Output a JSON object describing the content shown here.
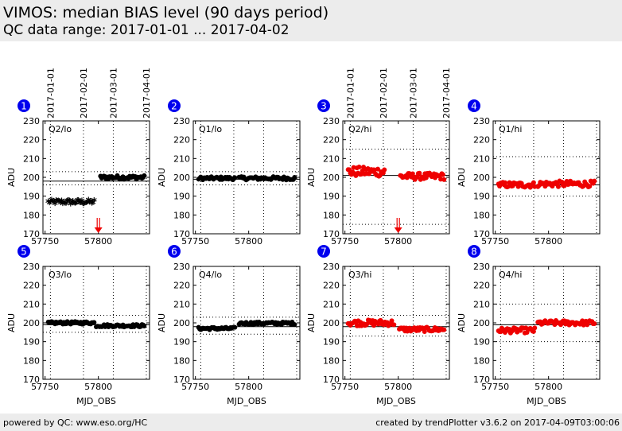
{
  "header": {
    "title": "VIMOS: median BIAS level (90 days period)",
    "subtitle": "QC data range: 2017-01-01 ... 2017-04-02"
  },
  "footer": {
    "left": "powered by QC: www.eso.org/HC",
    "right": "created by trendPlotter v3.6.2 on 2017-04-09T03:00:06"
  },
  "top_date_labels": [
    "2017-01-01",
    "2017-02-01",
    "2017-03-01",
    "2017-04-01"
  ],
  "xlabel": "MJD_OBS",
  "ylabel": "ADU",
  "colors": {
    "black_series": "#000000",
    "red_series": "#ee0000",
    "badge": "#0000ee"
  },
  "chart_data": [
    {
      "type": "scatter",
      "badge": "1",
      "label": "Q2/lo",
      "color": "black",
      "xlim": [
        57748,
        57848
      ],
      "ylim": [
        170,
        230
      ],
      "ref": 198,
      "bands": [
        203,
        196
      ],
      "outlier_arrow_x": 57800,
      "xticks": [
        57750,
        57800
      ],
      "yticks": [
        170,
        180,
        190,
        200,
        210,
        220,
        230
      ],
      "segments": [
        {
          "x0": 57753,
          "x1": 57796,
          "n": 42,
          "base": 186.5,
          "jitter": 1.3
        },
        {
          "x0": 57802,
          "x1": 57843,
          "n": 40,
          "base": 200,
          "jitter": 1.0
        }
      ]
    },
    {
      "type": "scatter",
      "badge": "2",
      "label": "Q1/lo",
      "color": "black",
      "xlim": [
        57748,
        57848
      ],
      "ylim": [
        170,
        230
      ],
      "ref": 199,
      "bands": [
        203,
        196
      ],
      "xticks": [
        57750,
        57800
      ],
      "yticks": [
        170,
        180,
        190,
        200,
        210,
        220,
        230
      ],
      "segments": [
        {
          "x0": 57753,
          "x1": 57787,
          "n": 35,
          "base": 199.5,
          "jitter": 0.8
        },
        {
          "x0": 57791,
          "x1": 57843,
          "n": 48,
          "base": 199.5,
          "jitter": 0.9
        }
      ]
    },
    {
      "type": "scatter",
      "badge": "3",
      "label": "Q2/hi",
      "color": "red",
      "xlim": [
        57748,
        57848
      ],
      "ylim": [
        170,
        230
      ],
      "ref": 201,
      "bands": [
        215,
        175
      ],
      "outlier_arrow_x": 57800,
      "xticks": [
        57750,
        57800
      ],
      "yticks": [
        170,
        180,
        190,
        200,
        210,
        220,
        230
      ],
      "segments": [
        {
          "x0": 57753,
          "x1": 57787,
          "n": 34,
          "base": 203,
          "jitter": 2.6
        },
        {
          "x0": 57802,
          "x1": 57843,
          "n": 40,
          "base": 200.5,
          "jitter": 1.8
        }
      ]
    },
    {
      "type": "scatter",
      "badge": "4",
      "label": "Q1/hi",
      "color": "red",
      "xlim": [
        57748,
        57848
      ],
      "ylim": [
        170,
        230
      ],
      "ref": 196,
      "bands": [
        211,
        190
      ],
      "xticks": [
        57750,
        57800
      ],
      "yticks": [
        170,
        180,
        190,
        200,
        210,
        220,
        230
      ],
      "segments": [
        {
          "x0": 57753,
          "x1": 57787,
          "n": 34,
          "base": 196,
          "jitter": 1.5
        },
        {
          "x0": 57790,
          "x1": 57843,
          "n": 48,
          "base": 196.5,
          "jitter": 1.6
        }
      ]
    },
    {
      "type": "scatter",
      "badge": "5",
      "label": "Q3/lo",
      "color": "black",
      "xlim": [
        57748,
        57848
      ],
      "ylim": [
        170,
        230
      ],
      "ref": 199,
      "bands": [
        204,
        195
      ],
      "xticks": [
        57750,
        57800
      ],
      "yticks": [
        170,
        180,
        190,
        200,
        210,
        220,
        230
      ],
      "segments": [
        {
          "x0": 57753,
          "x1": 57796,
          "n": 42,
          "base": 200,
          "jitter": 0.7
        },
        {
          "x0": 57798,
          "x1": 57843,
          "n": 44,
          "base": 198.5,
          "jitter": 0.7
        }
      ]
    },
    {
      "type": "scatter",
      "badge": "6",
      "label": "Q4/lo",
      "color": "black",
      "xlim": [
        57748,
        57848
      ],
      "ylim": [
        170,
        230
      ],
      "ref": 198,
      "bands": [
        203,
        194
      ],
      "xticks": [
        57750,
        57800
      ],
      "yticks": [
        170,
        180,
        190,
        200,
        210,
        220,
        230
      ],
      "segments": [
        {
          "x0": 57753,
          "x1": 57787,
          "n": 34,
          "base": 197,
          "jitter": 0.7
        },
        {
          "x0": 57791,
          "x1": 57843,
          "n": 48,
          "base": 199.8,
          "jitter": 0.7
        }
      ]
    },
    {
      "type": "scatter",
      "badge": "7",
      "label": "Q3/hi",
      "color": "red",
      "xlim": [
        57748,
        57848
      ],
      "ylim": [
        170,
        230
      ],
      "ref": 198,
      "bands": [
        204,
        193
      ],
      "xticks": [
        57750,
        57800
      ],
      "yticks": [
        170,
        180,
        190,
        200,
        210,
        220,
        230
      ],
      "segments": [
        {
          "x0": 57753,
          "x1": 57796,
          "n": 42,
          "base": 200,
          "jitter": 1.6
        },
        {
          "x0": 57801,
          "x1": 57843,
          "n": 40,
          "base": 196.5,
          "jitter": 1.2
        }
      ]
    },
    {
      "type": "scatter",
      "badge": "8",
      "label": "Q4/hi",
      "color": "red",
      "xlim": [
        57748,
        57848
      ],
      "ylim": [
        170,
        230
      ],
      "ref": 199,
      "bands": [
        210,
        190
      ],
      "xticks": [
        57750,
        57800
      ],
      "yticks": [
        170,
        180,
        190,
        200,
        210,
        220,
        230
      ],
      "segments": [
        {
          "x0": 57753,
          "x1": 57787,
          "n": 34,
          "base": 196,
          "jitter": 1.4
        },
        {
          "x0": 57790,
          "x1": 57843,
          "n": 48,
          "base": 200,
          "jitter": 1.3
        }
      ]
    }
  ]
}
